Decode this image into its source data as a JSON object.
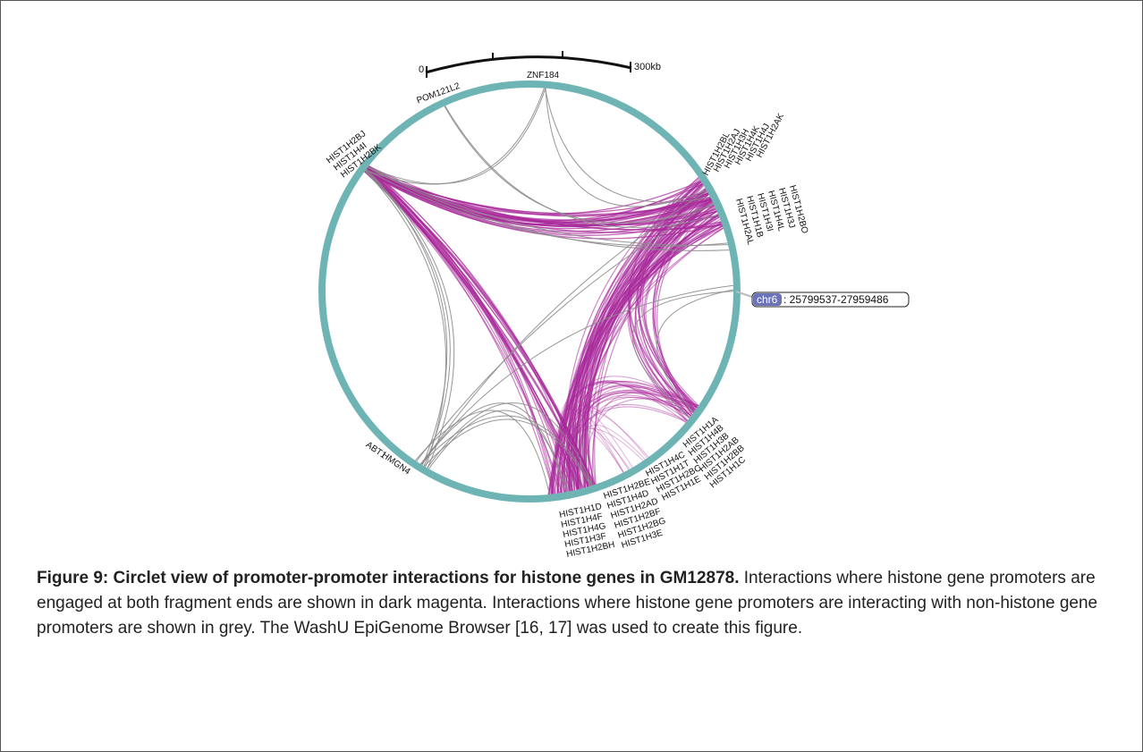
{
  "figure": {
    "scale": {
      "start": "0",
      "end": "300kb"
    },
    "genes": [
      [
        "ZNF184"
      ],
      [
        "POM121L2"
      ],
      [
        "HIST1H2BJ",
        "HIST1H4I",
        "HIST1H2BK"
      ],
      [
        "HIST1H2BL",
        "HIST1H2AJ",
        "HIST1H3H",
        "HIST1H4K",
        "HIST1H4J",
        "HIST1H2AK"
      ],
      [
        "HIST1H2AL",
        "HIST1H1B",
        "HIST1H3I",
        "HIST1H4L",
        "HIST1H3J",
        "HIST1H2BO"
      ],
      [
        "HIST1H1A",
        "HIST1H4B",
        "HIST1H3B",
        "HIST1H2AB",
        "HIST1H2BB",
        "HIST1H1C"
      ],
      [
        "HIST1H4C",
        "HIST1H1T",
        "HIST1H2BC",
        "HIST1H1E"
      ],
      [
        "HIST1H2BE",
        "HIST1H4D",
        "HIST1H2AD",
        "HIST1H2BF",
        "HIST1H2BG",
        "HIST1H3E"
      ],
      [
        "HIST1H1D",
        "HIST1H4F",
        "HIST1H4G",
        "HIST1H3F",
        "HIST1H2BH"
      ],
      [
        "ABT1"
      ],
      [
        "HMGN4"
      ]
    ],
    "locus": {
      "chrom": "chr6",
      "range": ": 25799537-27959486"
    },
    "caption": {
      "label": "Figure 9: Circlet view of promoter-promoter interactions for histone genes in GM12878.",
      "text": "Interactions where histone gene promoters are engaged at both fragment ends are shown in dark magenta. Interactions where histone gene promoters are interacting with non-histone gene promoters are shown in grey. The WashU EpiGenome Browser [16, 17] was used to create this figure."
    }
  }
}
